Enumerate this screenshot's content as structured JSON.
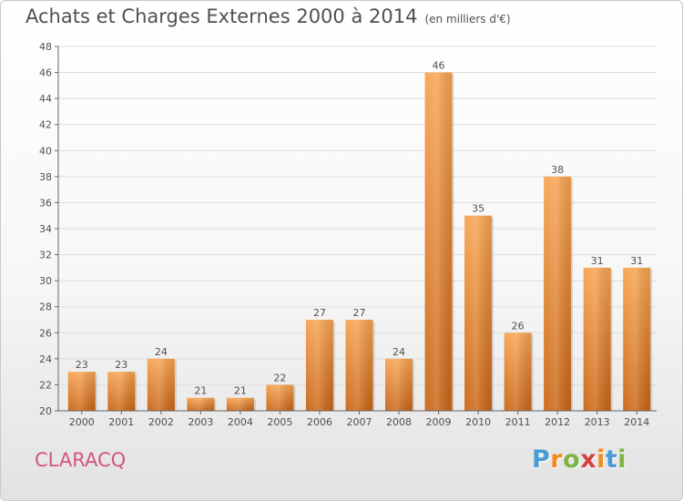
{
  "header": {
    "title": "Achats et Charges Externes 2000 à 2014",
    "unit": "(en milliers d'€)"
  },
  "commune": "CLARACQ",
  "brand": {
    "letters": [
      "P",
      "r",
      "o",
      "x",
      "i",
      "t",
      "i"
    ],
    "colors": [
      "#4a9ad6",
      "#f08c1e",
      "#7cb342",
      "#d63f3f",
      "#f08c1e",
      "#4a9ad6",
      "#7cb342"
    ]
  },
  "colors": {
    "bar_light": "#f7a34f",
    "bar_dark": "#c96414",
    "axis": "#666666",
    "grid": "#dddddd",
    "text": "#505050"
  },
  "chart_data": {
    "type": "bar",
    "title": "Achats et Charges Externes 2000 à 2014",
    "subtitle": "(en milliers d'€)",
    "categories": [
      "2000",
      "2001",
      "2002",
      "2003",
      "2004",
      "2005",
      "2006",
      "2007",
      "2008",
      "2009",
      "2010",
      "2011",
      "2012",
      "2013",
      "2014"
    ],
    "values": [
      23,
      23,
      24,
      21,
      21,
      22,
      27,
      27,
      24,
      46,
      35,
      26,
      38,
      31,
      31
    ],
    "ylim": [
      20,
      48
    ],
    "yticks": [
      20,
      22,
      24,
      26,
      28,
      30,
      32,
      34,
      36,
      38,
      40,
      42,
      44,
      46,
      48
    ],
    "grid": true,
    "data_labels": true
  }
}
